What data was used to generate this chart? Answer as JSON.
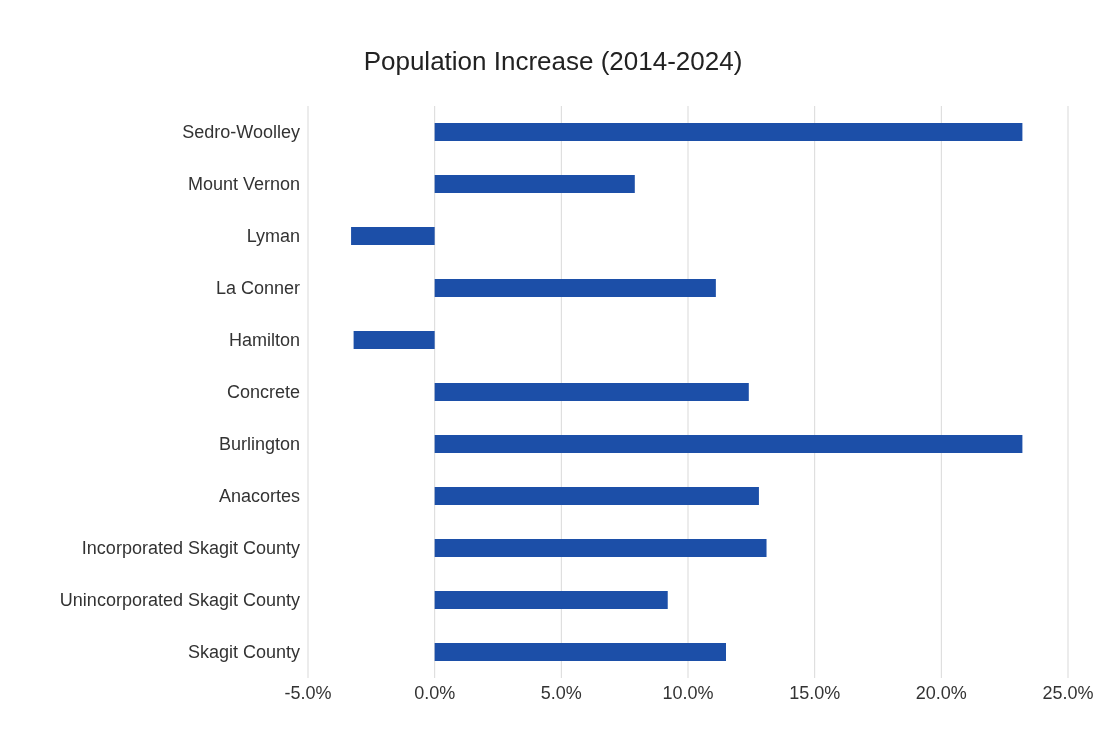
{
  "chart_data": {
    "type": "bar",
    "orientation": "horizontal",
    "title": "Population Increase (2014-2024)",
    "categories": [
      "Sedro-Woolley",
      "Mount Vernon",
      "Lyman",
      "La Conner",
      "Hamilton",
      "Concrete",
      "Burlington",
      "Anacortes",
      "Incorporated Skagit County",
      "Unincorporated Skagit County",
      "Skagit County"
    ],
    "values": [
      23.2,
      7.9,
      -3.3,
      11.1,
      -3.2,
      12.4,
      23.2,
      12.8,
      13.1,
      9.2,
      11.5
    ],
    "color": "#1c4fa8",
    "xlim": [
      -5,
      25
    ],
    "xticks": [
      {
        "value": -5,
        "label": "-5.0%"
      },
      {
        "value": 0,
        "label": "0.0%"
      },
      {
        "value": 5,
        "label": "5.0%"
      },
      {
        "value": 10,
        "label": "10.0%"
      },
      {
        "value": 15,
        "label": "15.0%"
      },
      {
        "value": 20,
        "label": "20.0%"
      },
      {
        "value": 25,
        "label": "25.0%"
      }
    ],
    "grid": "x",
    "legend": false
  }
}
